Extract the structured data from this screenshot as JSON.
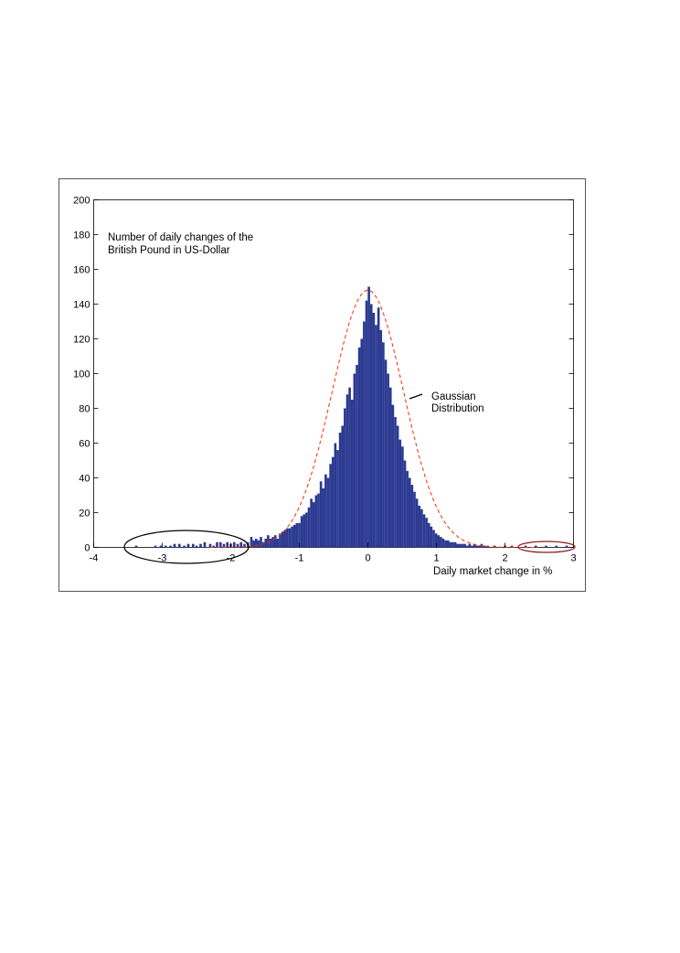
{
  "chart_data": {
    "type": "bar",
    "annotation_title": [
      "Number of daily changes of the",
      "British Pound in US-Dollar"
    ],
    "annotation_curve": [
      "Gaussian",
      "Distribution"
    ],
    "xlabel": "Daily market change in %",
    "ylabel": "",
    "xlim": [
      -4,
      3
    ],
    "ylim": [
      0,
      200
    ],
    "xticks": [
      -4,
      -3,
      -2,
      -1,
      0,
      1,
      2,
      3
    ],
    "yticks": [
      0,
      20,
      40,
      60,
      80,
      100,
      120,
      140,
      160,
      180,
      200
    ],
    "grid": false,
    "bin_width": 0.035,
    "series": [
      {
        "kind": "histogram",
        "color": "#2b3990",
        "bins": [
          [
            -3.38,
            1
          ],
          [
            -3.1,
            1
          ],
          [
            -3.02,
            1
          ],
          [
            -2.95,
            1
          ],
          [
            -2.88,
            1
          ],
          [
            -2.82,
            2
          ],
          [
            -2.75,
            2
          ],
          [
            -2.68,
            1
          ],
          [
            -2.62,
            2
          ],
          [
            -2.55,
            2
          ],
          [
            -2.5,
            1
          ],
          [
            -2.44,
            2
          ],
          [
            -2.38,
            3
          ],
          [
            -2.3,
            2
          ],
          [
            -2.25,
            1
          ],
          [
            -2.2,
            3
          ],
          [
            -2.15,
            3
          ],
          [
            -2.1,
            2
          ],
          [
            -2.05,
            3
          ],
          [
            -2.0,
            2
          ],
          [
            -1.95,
            3
          ],
          [
            -1.9,
            2
          ],
          [
            -1.85,
            3
          ],
          [
            -1.8,
            2
          ],
          [
            -1.75,
            3
          ],
          [
            -1.7,
            6
          ],
          [
            -1.665,
            4
          ],
          [
            -1.63,
            5
          ],
          [
            -1.595,
            4
          ],
          [
            -1.56,
            6
          ],
          [
            -1.525,
            3
          ],
          [
            -1.49,
            5
          ],
          [
            -1.455,
            7
          ],
          [
            -1.42,
            5
          ],
          [
            -1.385,
            6
          ],
          [
            -1.35,
            7
          ],
          [
            -1.315,
            5
          ],
          [
            -1.28,
            8
          ],
          [
            -1.245,
            9
          ],
          [
            -1.21,
            10
          ],
          [
            -1.175,
            11
          ],
          [
            -1.14,
            11
          ],
          [
            -1.105,
            12
          ],
          [
            -1.07,
            13
          ],
          [
            -1.035,
            14
          ],
          [
            -1.0,
            14
          ],
          [
            -0.965,
            18
          ],
          [
            -0.93,
            19
          ],
          [
            -0.895,
            20
          ],
          [
            -0.86,
            23
          ],
          [
            -0.825,
            28
          ],
          [
            -0.79,
            26
          ],
          [
            -0.755,
            30
          ],
          [
            -0.72,
            31
          ],
          [
            -0.685,
            38
          ],
          [
            -0.65,
            34
          ],
          [
            -0.615,
            42
          ],
          [
            -0.58,
            40
          ],
          [
            -0.545,
            48
          ],
          [
            -0.51,
            52
          ],
          [
            -0.475,
            60
          ],
          [
            -0.44,
            56
          ],
          [
            -0.405,
            66
          ],
          [
            -0.37,
            70
          ],
          [
            -0.335,
            80
          ],
          [
            -0.3,
            88
          ],
          [
            -0.265,
            92
          ],
          [
            -0.23,
            85
          ],
          [
            -0.195,
            100
          ],
          [
            -0.16,
            105
          ],
          [
            -0.125,
            115
          ],
          [
            -0.09,
            120
          ],
          [
            -0.055,
            130
          ],
          [
            -0.02,
            142
          ],
          [
            0.015,
            150
          ],
          [
            0.05,
            140
          ],
          [
            0.085,
            135
          ],
          [
            0.12,
            128
          ],
          [
            0.155,
            138
          ],
          [
            0.19,
            125
          ],
          [
            0.225,
            118
          ],
          [
            0.26,
            108
          ],
          [
            0.295,
            100
          ],
          [
            0.33,
            92
          ],
          [
            0.365,
            82
          ],
          [
            0.4,
            75
          ],
          [
            0.435,
            70
          ],
          [
            0.47,
            62
          ],
          [
            0.505,
            58
          ],
          [
            0.54,
            50
          ],
          [
            0.575,
            44
          ],
          [
            0.61,
            40
          ],
          [
            0.645,
            36
          ],
          [
            0.68,
            32
          ],
          [
            0.715,
            28
          ],
          [
            0.75,
            24
          ],
          [
            0.785,
            22
          ],
          [
            0.82,
            19
          ],
          [
            0.855,
            17
          ],
          [
            0.89,
            14
          ],
          [
            0.925,
            12
          ],
          [
            0.96,
            10
          ],
          [
            0.995,
            8
          ],
          [
            1.03,
            7
          ],
          [
            1.065,
            6
          ],
          [
            1.1,
            5
          ],
          [
            1.135,
            4
          ],
          [
            1.17,
            4
          ],
          [
            1.205,
            3
          ],
          [
            1.24,
            3
          ],
          [
            1.275,
            3
          ],
          [
            1.31,
            2
          ],
          [
            1.345,
            2
          ],
          [
            1.38,
            2
          ],
          [
            1.415,
            2
          ],
          [
            1.45,
            1
          ],
          [
            1.485,
            2
          ],
          [
            1.52,
            1
          ],
          [
            1.555,
            2
          ],
          [
            1.59,
            1
          ],
          [
            1.625,
            1
          ],
          [
            1.66,
            2
          ],
          [
            1.7,
            1
          ],
          [
            1.75,
            1
          ],
          [
            1.85,
            1
          ],
          [
            2.0,
            1
          ],
          [
            2.1,
            1
          ],
          [
            2.3,
            1
          ],
          [
            2.45,
            1
          ],
          [
            2.6,
            1
          ],
          [
            2.75,
            1
          ],
          [
            2.9,
            1
          ]
        ]
      },
      {
        "kind": "gaussian",
        "color": "#ff2a00",
        "dash": "dashed",
        "mean": 0.0,
        "std": 0.52,
        "peak": 148
      }
    ]
  }
}
